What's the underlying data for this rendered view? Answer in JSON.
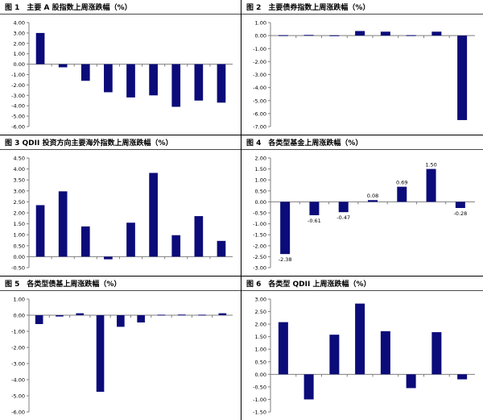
{
  "page": {
    "background": "#ffffff",
    "bar_color": "#0b0b7a",
    "axis_color": "#7f7f7f",
    "text_color": "#000000"
  },
  "chart_data": [
    {
      "id": "fig1",
      "type": "bar",
      "title": "图 1　主要 A 股指数上周涨跌幅（%）",
      "yticks": [
        "4.00",
        "3.00",
        "2.00",
        "1.00",
        "0.00",
        "-1.00",
        "-2.00",
        "-3.00",
        "-4.00",
        "-5.00",
        "-6.00"
      ],
      "ylim": [
        -6,
        4
      ],
      "categories": [
        "",
        "",
        "",
        "",
        "",
        "",
        "",
        "",
        ""
      ],
      "values": [
        3.0,
        -0.3,
        -1.6,
        -2.7,
        -3.2,
        -3.0,
        -4.1,
        -3.5,
        -3.7
      ],
      "data_labels": []
    },
    {
      "id": "fig2",
      "type": "bar",
      "title": "图 2　主要债券指数上周涨跌幅（%）",
      "yticks": [
        "1.00",
        "0.00",
        "-1.00",
        "-2.00",
        "-3.00",
        "-4.00",
        "-5.00",
        "-6.00",
        "-7.00"
      ],
      "ylim": [
        -7,
        1
      ],
      "categories": [
        "",
        "",
        "",
        "",
        "",
        "",
        "",
        ""
      ],
      "values": [
        0.03,
        0.05,
        0.02,
        0.35,
        0.3,
        0.03,
        0.3,
        -6.5
      ],
      "data_labels": []
    },
    {
      "id": "fig3",
      "type": "bar",
      "title": "图 3 QDII 投资方向主要海外指数上周涨跌幅（%）",
      "yticks": [
        "4.50",
        "4.00",
        "3.50",
        "3.00",
        "2.50",
        "2.00",
        "1.50",
        "1.00",
        "0.50",
        "0.00",
        "-0.50"
      ],
      "ylim": [
        -0.5,
        4.5
      ],
      "categories": [
        "",
        "",
        "",
        "",
        "",
        "",
        "",
        "",
        ""
      ],
      "values": [
        2.35,
        2.98,
        1.38,
        -0.12,
        1.55,
        3.82,
        0.98,
        1.85,
        0.72
      ],
      "data_labels": []
    },
    {
      "id": "fig4",
      "type": "bar",
      "title": "图 4　各类型基金上周涨跌幅（%）",
      "yticks": [
        "2.00",
        "1.50",
        "1.00",
        "0.50",
        "0.00",
        "-0.50",
        "-1.00",
        "-1.50",
        "-2.00",
        "-2.50",
        "-3.00"
      ],
      "ylim": [
        -3,
        2
      ],
      "categories": [
        "",
        "",
        "",
        "",
        "",
        "",
        ""
      ],
      "values": [
        -2.38,
        -0.61,
        -0.47,
        0.08,
        0.69,
        1.5,
        -0.28
      ],
      "data_labels": [
        "-2.38",
        "-0.61",
        "-0.47",
        "0.08",
        "0.69",
        "1.50",
        "-0.28"
      ]
    },
    {
      "id": "fig5",
      "type": "bar",
      "title": "图 5　各类型债基上周涨跌幅（%）",
      "yticks": [
        "1.00",
        "0.00",
        "-1.00",
        "-2.00",
        "-3.00",
        "-4.00",
        "-5.00",
        "-6.00"
      ],
      "ylim": [
        -6,
        1
      ],
      "categories": [
        "",
        "",
        "",
        "",
        "",
        "",
        "",
        "",
        "",
        ""
      ],
      "values": [
        -0.55,
        -0.08,
        0.12,
        -4.75,
        -0.72,
        -0.45,
        0.03,
        0.04,
        0.03,
        0.12
      ],
      "data_labels": []
    },
    {
      "id": "fig6",
      "type": "bar",
      "title": "图 6　各类型 QDII 上周涨跌幅（%）",
      "yticks": [
        "3.00",
        "2.50",
        "2.00",
        "1.50",
        "1.00",
        "0.50",
        "0.00",
        "-0.50",
        "-1.00",
        "-1.50"
      ],
      "ylim": [
        -1.5,
        3
      ],
      "categories": [
        "",
        "",
        "",
        "",
        "",
        "",
        "",
        ""
      ],
      "values": [
        2.08,
        -1.0,
        1.58,
        2.82,
        1.72,
        -0.55,
        1.68,
        -0.2
      ],
      "data_labels": []
    }
  ]
}
